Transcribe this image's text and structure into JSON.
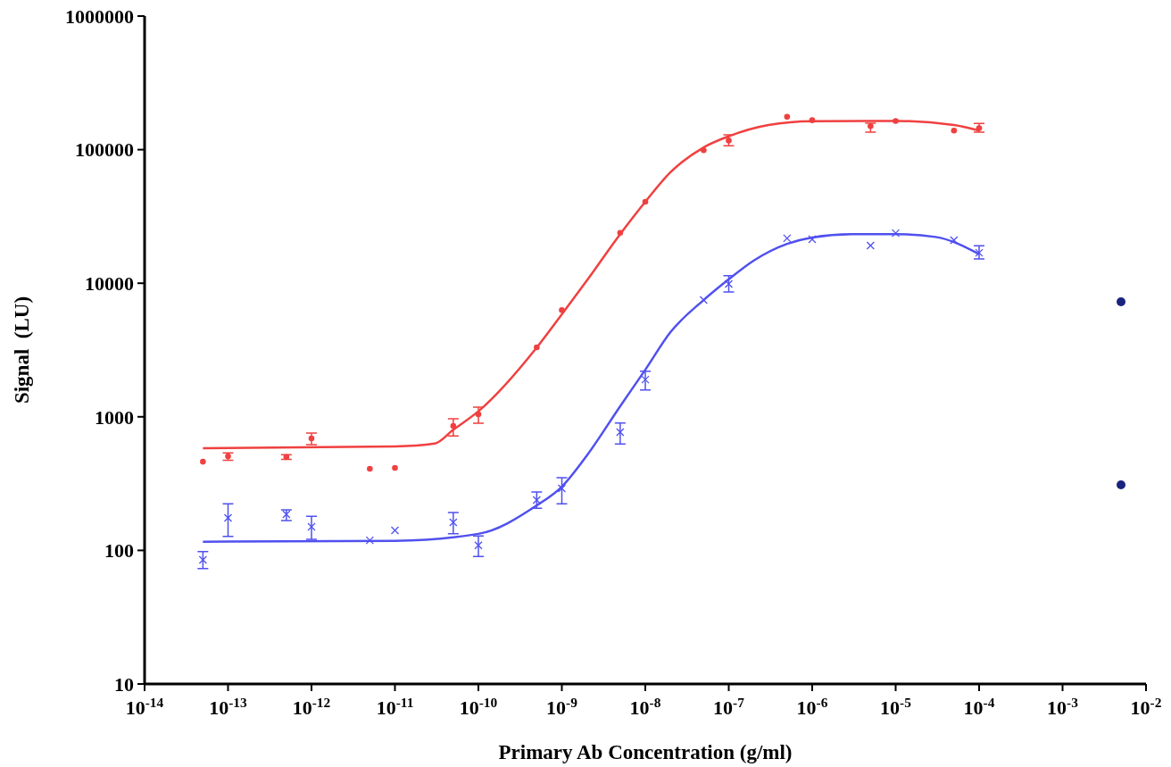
{
  "chart_data": {
    "type": "scatter",
    "xlabel": "Primary Ab Concentration (g/ml)",
    "ylabel": "Signal  (LU)",
    "log": "xy",
    "grid": false,
    "xlim": [
      1e-14,
      0.01
    ],
    "xticks": [
      {
        "value": 1e-14,
        "label": "10$^{-14}$"
      },
      {
        "value": 1e-13,
        "label": "10$^{-13}$"
      },
      {
        "value": 1e-12,
        "label": "10$^{-12}$"
      },
      {
        "value": 1e-11,
        "label": "10$^{-11}$"
      },
      {
        "value": 1e-10,
        "label": "10$^{-10}$"
      },
      {
        "value": 1e-09,
        "label": "10$^{-9}$"
      },
      {
        "value": 1e-08,
        "label": "10$^{-8}$"
      },
      {
        "value": 1e-07,
        "label": "10$^{-7}$"
      },
      {
        "value": 1e-06,
        "label": "10$^{-6}$"
      },
      {
        "value": 1e-05,
        "label": "10$^{-5}$"
      },
      {
        "value": 0.0001,
        "label": "10$^{-4}$"
      },
      {
        "value": 0.001,
        "label": "10$^{-3}$"
      },
      {
        "value": 0.01,
        "label": "10$^{-2}$"
      }
    ],
    "ylim": [
      10,
      1000000
    ],
    "yticks": [
      10,
      100,
      1000,
      10000,
      100000,
      1000000
    ],
    "series": [
      {
        "color": "#5050f0",
        "marker": "cross",
        "x": [
          5e-14,
          1e-13,
          5e-13,
          1e-12,
          5e-12,
          1e-11,
          5e-11,
          1e-10,
          5e-10,
          1e-09,
          5e-09,
          1e-08,
          5e-08,
          1e-07,
          5e-07,
          1e-06,
          5e-06,
          1e-05,
          5e-05,
          0.0001
        ],
        "values": [
          85,
          175,
          186,
          150,
          119,
          141,
          162,
          109,
          238,
          291,
          767,
          1900,
          7480,
          9890,
          21700,
          21300,
          19150,
          23700,
          21000,
          16900
        ],
        "errors": [
          [
            73,
            98
          ],
          [
            127,
            223
          ],
          [
            167,
            201
          ],
          [
            121,
            180
          ],
          null,
          null,
          [
            133,
            192
          ],
          [
            90,
            128
          ],
          [
            207,
            274
          ],
          [
            223,
            350
          ],
          [
            627,
            897
          ],
          [
            1590,
            2190
          ],
          null,
          [
            8600,
            11400
          ],
          null,
          null,
          null,
          null,
          null,
          [
            15200,
            19100
          ]
        ]
      },
      {
        "color": "#f04040",
        "marker": "circle",
        "x": [
          5e-14,
          1e-13,
          5e-13,
          1e-12,
          5e-12,
          1e-11,
          5e-11,
          1e-10,
          5e-10,
          1e-09,
          5e-09,
          1e-08,
          5e-08,
          1e-07,
          5e-07,
          1e-06,
          5e-06,
          1e-05,
          5e-05,
          0.0001
        ],
        "values": [
          461,
          507,
          500,
          689,
          408,
          415,
          855,
          1045,
          3310,
          6300,
          23800,
          40700,
          99000,
          117000,
          176000,
          166000,
          150000,
          164000,
          139000,
          145000
        ],
        "errors": [
          null,
          [
            473,
            537
          ],
          [
            480,
            520
          ],
          [
            618,
            755
          ],
          null,
          null,
          [
            720,
            967
          ],
          [
            895,
            1180
          ],
          null,
          null,
          null,
          null,
          null,
          [
            107000,
            129000
          ],
          null,
          null,
          [
            135000,
            158000
          ],
          null,
          null,
          [
            135000,
            157000
          ]
        ]
      },
      {
        "type": "line",
        "color": "#5050f0",
        "x": [
          5e-14,
          1e-11,
          1e-10,
          5e-10,
          1e-09,
          2e-09,
          5e-09,
          1e-08,
          2e-08,
          5e-08,
          1e-07,
          2e-07,
          5e-07,
          1e-06,
          3e-06,
          1e-05,
          3e-05,
          0.0001
        ],
        "values": [
          116,
          118,
          133,
          217,
          300,
          514,
          1200,
          2250,
          4300,
          7480,
          10700,
          14800,
          19700,
          22000,
          23300,
          23300,
          22200,
          16500
        ]
      },
      {
        "type": "line",
        "color": "#f04040",
        "x": [
          5e-14,
          1e-11,
          3e-11,
          5e-11,
          1e-10,
          5e-10,
          1e-09,
          2e-09,
          5e-09,
          1e-08,
          2e-08,
          5e-08,
          1e-07,
          3e-07,
          1e-06,
          1e-05,
          5e-05,
          0.0001
        ],
        "values": [
          582,
          600,
          630,
          800,
          1100,
          3300,
          5850,
          10500,
          23300,
          40700,
          67700,
          104000,
          126000,
          153000,
          163000,
          164000,
          153000,
          139000
        ]
      }
    ]
  }
}
